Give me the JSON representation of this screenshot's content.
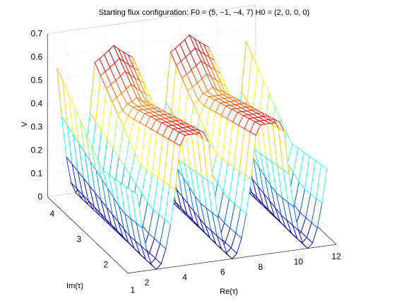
{
  "chart_data": {
    "type": "surface",
    "title": "Starting flux configuration: F0 = (5, −1, −4, 7) H0 = (2, 0, 0, 0)",
    "xlabel": "Re(τ)",
    "ylabel": "Im(τ)",
    "zlabel": "V",
    "xlim": [
      1,
      12
    ],
    "ylim": [
      1.5,
      4.5
    ],
    "zlim": [
      0,
      0.7
    ],
    "x_ticks": [
      "2",
      "4",
      "6",
      "8",
      "10",
      "12"
    ],
    "y_ticks": [
      "1",
      "2",
      "3",
      "4"
    ],
    "z_ticks": [
      "0",
      "0.1",
      "0.2",
      "0.3",
      "0.4",
      "0.5",
      "0.6",
      "0.7"
    ],
    "colormap": "jet",
    "grid": true,
    "x_range": [
      1.5,
      11.5
    ],
    "y_range": [
      1.5,
      4.5
    ],
    "approx_minima": [
      {
        "re": 2.5,
        "im": 1.6,
        "v": 0.0
      },
      {
        "re": 6.5,
        "im": 1.6,
        "v": 0.0
      },
      {
        "re": 10.5,
        "im": 1.6,
        "v": 0.0
      }
    ],
    "approx_peak_v": 0.62,
    "period_re": 4
  }
}
